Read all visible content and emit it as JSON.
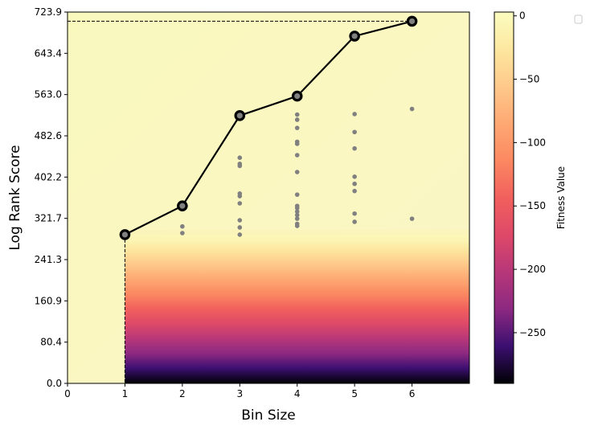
{
  "chart_data": {
    "type": "scatter",
    "xlabel": "Bin Size",
    "ylabel": "Log Rank Score",
    "xlim": [
      0,
      7
    ],
    "ylim": [
      0,
      723.9
    ],
    "x_ticks": [
      0,
      1,
      2,
      3,
      4,
      5,
      6
    ],
    "y_ticks": [
      "0.0",
      "80.4",
      "160.9",
      "241.3",
      "321.7",
      "402.2",
      "482.6",
      "563.0",
      "643.4",
      "723.9"
    ],
    "grid": false,
    "legend": "top-right, empty",
    "frontier": {
      "color": "#000000",
      "points": [
        [
          1,
          290
        ],
        [
          2,
          346
        ],
        [
          3,
          522
        ],
        [
          4,
          560
        ],
        [
          5,
          677
        ],
        [
          6,
          706
        ]
      ]
    },
    "scatter": {
      "color": "#808080",
      "points": [
        [
          2,
          306
        ],
        [
          2,
          293
        ],
        [
          3,
          440
        ],
        [
          3,
          428
        ],
        [
          3,
          424
        ],
        [
          3,
          370
        ],
        [
          3,
          365
        ],
        [
          3,
          351
        ],
        [
          3,
          318
        ],
        [
          3,
          304
        ],
        [
          3,
          290
        ],
        [
          4,
          524
        ],
        [
          4,
          514
        ],
        [
          4,
          498
        ],
        [
          4,
          471
        ],
        [
          4,
          467
        ],
        [
          4,
          445
        ],
        [
          4,
          412
        ],
        [
          4,
          368
        ],
        [
          4,
          346
        ],
        [
          4,
          342
        ],
        [
          4,
          335
        ],
        [
          4,
          328
        ],
        [
          4,
          321
        ],
        [
          4,
          311
        ],
        [
          4,
          307
        ],
        [
          5,
          525
        ],
        [
          5,
          490
        ],
        [
          5,
          458
        ],
        [
          5,
          403
        ],
        [
          5,
          389
        ],
        [
          5,
          375
        ],
        [
          5,
          331
        ],
        [
          5,
          315
        ],
        [
          6,
          535
        ],
        [
          6,
          321
        ]
      ]
    },
    "reference_lines": {
      "best_y": 706,
      "min_x": 1
    },
    "heatmap": {
      "description_of_field": "fitness value field; light yellow above ~290, gradient to black at 0 for x>=1",
      "colormap": "magma"
    },
    "colorbar": {
      "label": "Fitness Value",
      "range": [
        -290,
        3
      ],
      "ticks": [
        0,
        -50,
        -100,
        -150,
        -200,
        -250
      ],
      "tick_labels": [
        "0",
        "−50",
        "−100",
        "−150",
        "−200",
        "−250"
      ]
    }
  }
}
